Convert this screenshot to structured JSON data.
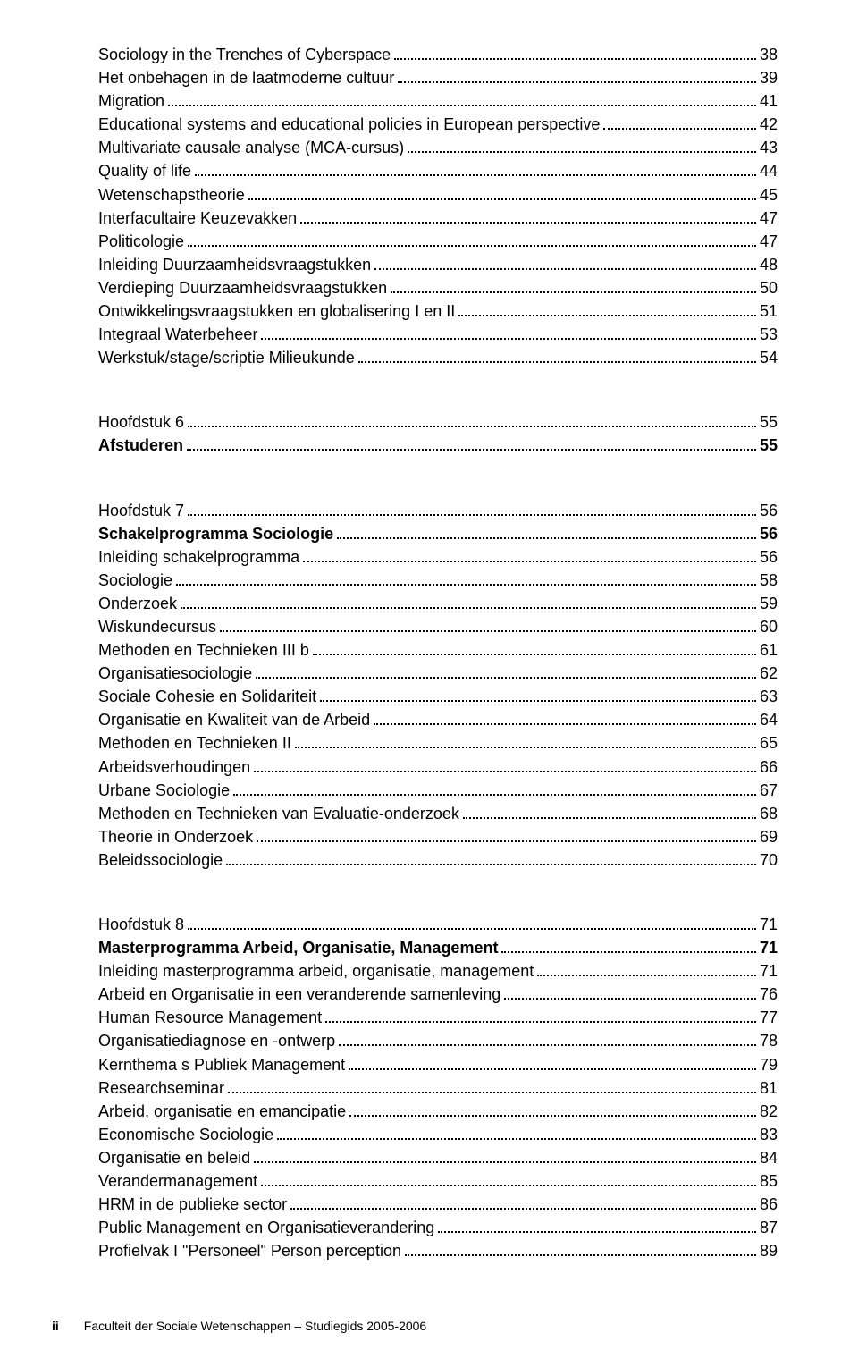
{
  "colors": {
    "text": "#000000",
    "background": "#ffffff"
  },
  "typography": {
    "font_family": "Arial, Helvetica, sans-serif",
    "body_fontsize_pt": 13,
    "footer_fontsize_pt": 10
  },
  "blocks": [
    {
      "lines": [
        {
          "title": "Sociology in the Trenches of Cyberspace",
          "page": "38",
          "bold": false
        },
        {
          "title": "Het onbehagen in de laatmoderne cultuur",
          "page": "39",
          "bold": false
        },
        {
          "title": "Migration",
          "page": "41",
          "bold": false
        },
        {
          "title": "Educational systems and educational policies in European perspective",
          "page": "42",
          "bold": false
        },
        {
          "title": "Multivariate causale analyse (MCA-cursus)",
          "page": "43",
          "bold": false
        },
        {
          "title": "Quality of life",
          "page": "44",
          "bold": false
        },
        {
          "title": "Wetenschapstheorie",
          "page": "45",
          "bold": false
        },
        {
          "title": "Interfacultaire Keuzevakken",
          "page": "47",
          "bold": false
        },
        {
          "title": "Politicologie",
          "page": "47",
          "bold": false
        },
        {
          "title": "Inleiding Duurzaamheidsvraagstukken",
          "page": "48",
          "bold": false
        },
        {
          "title": "Verdieping Duurzaamheidsvraagstukken",
          "page": "50",
          "bold": false
        },
        {
          "title": "Ontwikkelingsvraagstukken en globalisering I en II",
          "page": "51",
          "bold": false
        },
        {
          "title": "Integraal Waterbeheer",
          "page": "53",
          "bold": false
        },
        {
          "title": "Werkstuk/stage/scriptie Milieukunde",
          "page": "54",
          "bold": false
        }
      ]
    },
    {
      "lines": [
        {
          "title": "Hoofdstuk 6",
          "page": "55",
          "bold": false
        },
        {
          "title": "Afstuderen",
          "page": "55",
          "bold": true
        }
      ]
    },
    {
      "lines": [
        {
          "title": "Hoofdstuk 7",
          "page": "56",
          "bold": false
        },
        {
          "title": "Schakelprogramma Sociologie",
          "page": "56",
          "bold": true
        },
        {
          "title": "Inleiding schakelprogramma",
          "page": "56",
          "bold": false
        },
        {
          "title": "Sociologie",
          "page": "58",
          "bold": false
        },
        {
          "title": "Onderzoek",
          "page": "59",
          "bold": false
        },
        {
          "title": "Wiskundecursus",
          "page": "60",
          "bold": false
        },
        {
          "title": "Methoden en Technieken III b",
          "page": "61",
          "bold": false
        },
        {
          "title": "Organisatiesociologie",
          "page": "62",
          "bold": false
        },
        {
          "title": "Sociale Cohesie en Solidariteit",
          "page": "63",
          "bold": false
        },
        {
          "title": "Organisatie en Kwaliteit van de Arbeid",
          "page": "64",
          "bold": false
        },
        {
          "title": "Methoden en Technieken II",
          "page": "65",
          "bold": false
        },
        {
          "title": "Arbeidsverhoudingen",
          "page": "66",
          "bold": false
        },
        {
          "title": "Urbane Sociologie",
          "page": "67",
          "bold": false
        },
        {
          "title": "Methoden en Technieken van Evaluatie-onderzoek",
          "page": "68",
          "bold": false
        },
        {
          "title": "Theorie in Onderzoek",
          "page": "69",
          "bold": false
        },
        {
          "title": "Beleidssociologie",
          "page": "70",
          "bold": false
        }
      ]
    },
    {
      "lines": [
        {
          "title": "Hoofdstuk 8",
          "page": "71",
          "bold": false
        },
        {
          "title": "Masterprogramma Arbeid, Organisatie, Management",
          "page": "71",
          "bold": true
        },
        {
          "title": "Inleiding masterprogramma arbeid, organisatie, management",
          "page": "71",
          "bold": false
        },
        {
          "title": "Arbeid en Organisatie in een veranderende samenleving",
          "page": "76",
          "bold": false
        },
        {
          "title": "Human Resource Management",
          "page": "77",
          "bold": false
        },
        {
          "title": "Organisatiediagnose en -ontwerp",
          "page": "78",
          "bold": false
        },
        {
          "title": "Kernthema s Publiek Management",
          "page": "79",
          "bold": false
        },
        {
          "title": "Researchseminar",
          "page": "81",
          "bold": false
        },
        {
          "title": "Arbeid, organisatie en emancipatie",
          "page": "82",
          "bold": false
        },
        {
          "title": "Economische Sociologie",
          "page": "83",
          "bold": false
        },
        {
          "title": "Organisatie en beleid",
          "page": "84",
          "bold": false
        },
        {
          "title": "Verandermanagement",
          "page": "85",
          "bold": false
        },
        {
          "title": "HRM in de publieke sector",
          "page": "86",
          "bold": false
        },
        {
          "title": "Public Management en Organisatieverandering",
          "page": "87",
          "bold": false
        },
        {
          "title": "Profielvak I \"Personeel\" Person perception",
          "page": "89",
          "bold": false
        }
      ]
    }
  ],
  "footer": {
    "page_number": "ii",
    "text": "Faculteit der Sociale Wetenschappen – Studiegids 2005-2006"
  }
}
